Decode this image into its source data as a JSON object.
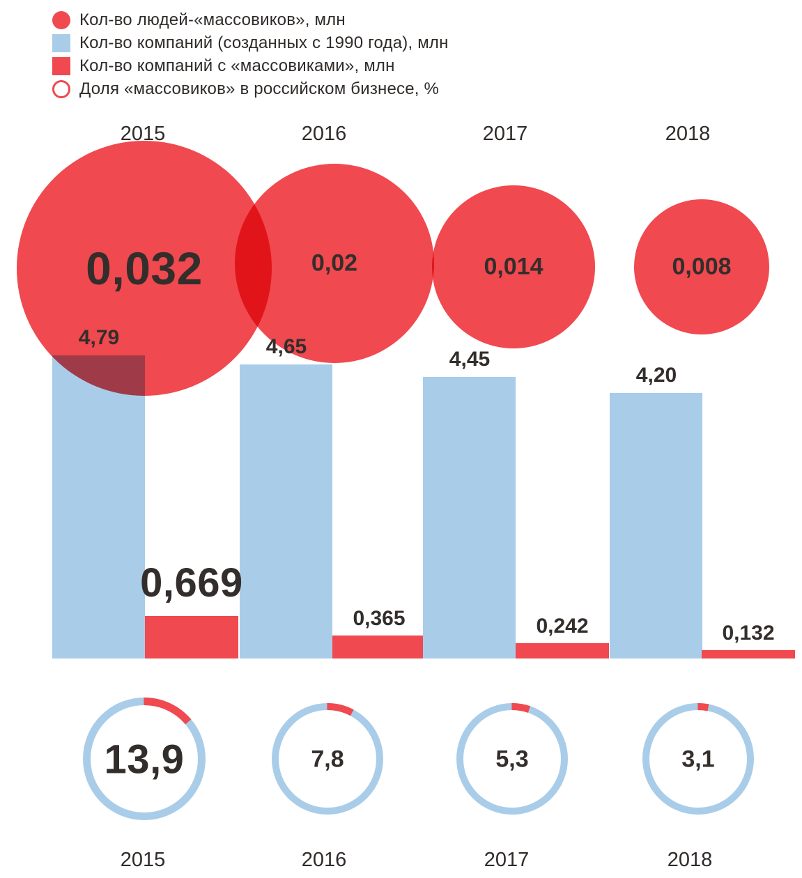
{
  "colors": {
    "red": "#f0494f",
    "blue": "#a9cde9",
    "dark": "#332e2b"
  },
  "legend": {
    "items": [
      {
        "label": "Кол-во людей-«массовиков», млн",
        "swatch": "red-circle"
      },
      {
        "label": "Кол-во компаний (созданных с 1990 года), млн",
        "swatch": "blue-square"
      },
      {
        "label": "Кол-во компаний с «массовиками», млн",
        "swatch": "red-square"
      },
      {
        "label": "Доля «массовиков» в российском бизнесе, %",
        "swatch": "red-ring"
      }
    ]
  },
  "columns": [
    {
      "year": "2015",
      "people_mln": "0,032",
      "companies_mln": "4,79",
      "mass_companies_mln": "0,669",
      "share_pct": "13,9"
    },
    {
      "year": "2016",
      "people_mln": "0,02",
      "companies_mln": "4,65",
      "mass_companies_mln": "0,365",
      "share_pct": "7,8"
    },
    {
      "year": "2017",
      "people_mln": "0,014",
      "companies_mln": "4,45",
      "mass_companies_mln": "0,242",
      "share_pct": "5,3"
    },
    {
      "year": "2018",
      "people_mln": "0,008",
      "companies_mln": "4,20",
      "mass_companies_mln": "0,132",
      "share_pct": "3,1"
    }
  ],
  "chart_data": {
    "type": "bar",
    "categories": [
      "2015",
      "2016",
      "2017",
      "2018"
    ],
    "series": [
      {
        "name": "Кол-во людей-«массовиков», млн",
        "mark": "bubble",
        "values": [
          0.032,
          0.02,
          0.014,
          0.008
        ]
      },
      {
        "name": "Кол-во компаний (созданных с 1990 года), млн",
        "mark": "bar",
        "values": [
          4.79,
          4.65,
          4.45,
          4.2
        ]
      },
      {
        "name": "Кол-во компаний с «массовиками», млн",
        "mark": "bar",
        "values": [
          0.669,
          0.365,
          0.242,
          0.132
        ]
      },
      {
        "name": "Доля «массовиков» в российском бизнесе, %",
        "mark": "donut",
        "values": [
          13.9,
          7.8,
          5.3,
          3.1
        ]
      }
    ],
    "ylim": [
      0,
      5
    ],
    "grid": false,
    "legend_position": "top-left"
  }
}
